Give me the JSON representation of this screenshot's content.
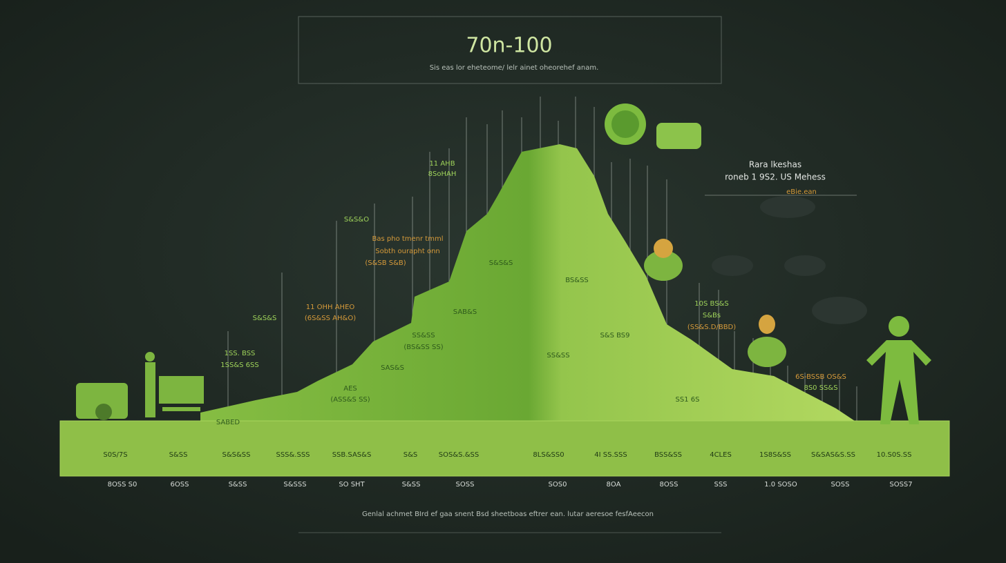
{
  "header": {
    "title": "70n-100",
    "subtitle": "Sis eas lor eheteome/ lelr ainet oheorehef anam."
  },
  "legend": {
    "title": "Rara lkeshas",
    "subtitle": "roneb 1 9S2. US Mehess",
    "note": "eBie.ean"
  },
  "annotations": [
    "11 AHB",
    "8SoHAH",
    "S&S&O",
    "Bas pho tmenr tmml",
    "Sobth ourapht onn",
    "(S&SB S&B)",
    "11 OHH AHEO",
    "(6S&SS AH&O)",
    "S&S&S",
    "1SS. BSS",
    "1SS&S 6SS",
    "S&S&S",
    "SAB&S",
    "SS&SS",
    "(BS&SS SS)",
    "SAS&S",
    "AES",
    "(ASS&S SS)",
    "SABED",
    "BS&SS",
    "S&S BS9",
    "SS&SS",
    "10S BS&S",
    "S&Bs",
    "(SS&S.D/BBD)",
    "6S-BSSB OS&S",
    "8S0 SS&S",
    "SS1 6S"
  ],
  "band_labels": [
    "S0S/7S",
    "S&SS",
    "S&S&SS",
    "SSS&.SSS",
    "SSB.SAS&S",
    "S&S",
    "SOS&S.&SS",
    "8LS&SS0",
    "4I SS.SSS",
    "BSS&SS",
    "4CLES",
    "1S8S&SS",
    "S&SAS&S.SS",
    "10.S0S.SS"
  ],
  "axis_labels": [
    "8OSS S0",
    "6OSS",
    "S&SS",
    "S&SSS",
    "SO SHT",
    "S&SS",
    "SOSS",
    "SOS0",
    "8OA",
    "8OSS",
    "SSS",
    "1.0 SOSO",
    "SOSS",
    "SOSS7"
  ],
  "footer": "Genlal achmet BIrd ef gaa snent Bsd sheetboas eftrer ean. lutar aeresoe fesfAeecon"
}
